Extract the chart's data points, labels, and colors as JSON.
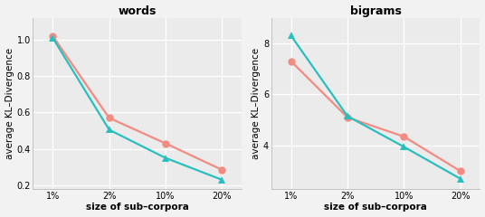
{
  "categories": [
    "1%",
    "2%",
    "10%",
    "20%"
  ],
  "words": {
    "title": "words",
    "salmon": [
      1.02,
      0.57,
      0.43,
      0.285
    ],
    "teal": [
      1.01,
      0.505,
      0.35,
      0.23
    ],
    "ylim": [
      0.18,
      1.12
    ],
    "yticks": [
      0.2,
      0.4,
      0.6,
      0.8,
      1.0
    ],
    "ytick_labels": [
      "0.2",
      "0.4",
      "0.6",
      "0.8",
      "1.0"
    ]
  },
  "bigrams": {
    "title": "bigrams",
    "salmon": [
      7.3,
      5.1,
      4.35,
      3.0
    ],
    "teal": [
      8.3,
      5.15,
      3.95,
      2.7
    ],
    "ylim": [
      2.3,
      9.0
    ],
    "yticks": [
      4,
      6,
      8
    ],
    "ytick_labels": [
      "4",
      "6",
      "8"
    ]
  },
  "salmon_color": "#F28B82",
  "teal_color": "#2ABFBF",
  "bg_color": "#EBEBEB",
  "grid_color": "#FFFFFF",
  "fig_bg": "#F2F2F2",
  "ylabel": "average KL–Divergence",
  "xlabel": "size of sub–corpora",
  "linewidth": 1.6,
  "markersize": 6,
  "title_fontsize": 9,
  "tick_fontsize": 7,
  "label_fontsize": 7.5
}
